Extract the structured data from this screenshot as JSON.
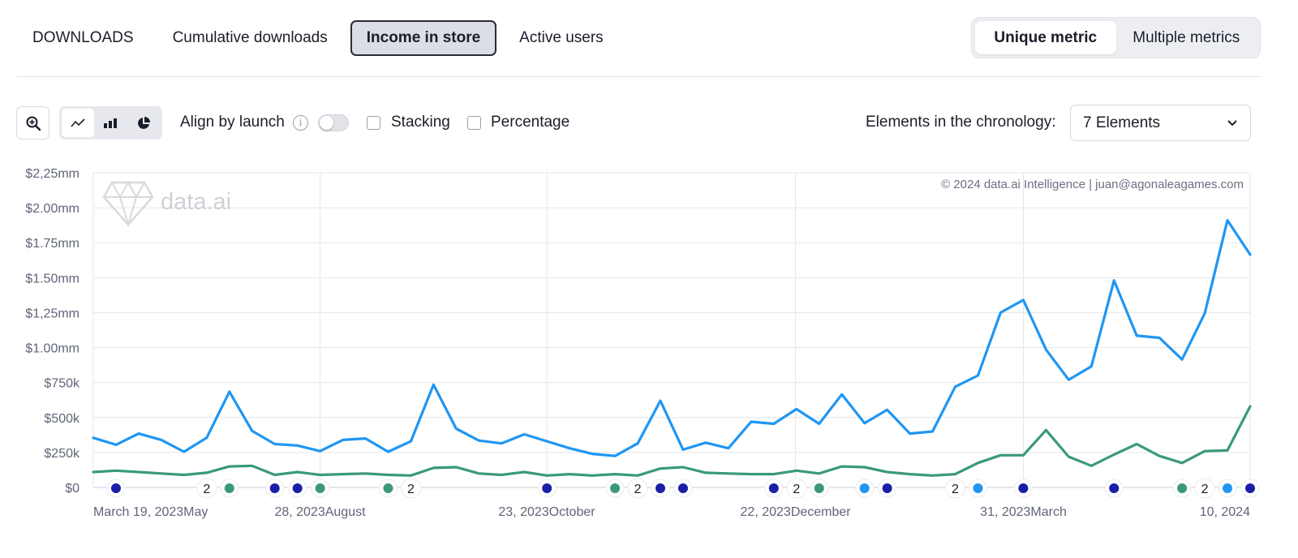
{
  "tabs": [
    {
      "label": "DOWNLOADS",
      "active": false
    },
    {
      "label": "Cumulative downloads",
      "active": false
    },
    {
      "label": "Income in store",
      "active": true
    },
    {
      "label": "Active users",
      "active": false
    }
  ],
  "metric_toggle": {
    "unique": "Unique metric",
    "multiple": "Multiple metrics",
    "selected": "unique"
  },
  "toolbar": {
    "zoom_icon": "zoom-in-icon",
    "chart_types": [
      "line-chart-icon",
      "bar-chart-icon",
      "pie-chart-icon"
    ],
    "selected_chart_type": "line",
    "align_label": "Align by launch",
    "align_on": false,
    "stacking_label": "Stacking",
    "stacking_checked": false,
    "percentage_label": "Percentage",
    "percentage_checked": false,
    "elements_label": "Elements in the chronology:",
    "elements_value": "7 Elements"
  },
  "chart_data": {
    "type": "line",
    "watermark": "data.ai",
    "credit": "© 2024 data.ai Intelligence | juan@agonaleagames.com",
    "y_ticks": [
      "$0",
      "$250k",
      "$500k",
      "$750k",
      "$1.00mm",
      "$1,25mm",
      "$1.50mm",
      "$1.75mm",
      "$2.00mm",
      "$2,25mm"
    ],
    "ylim": [
      0,
      2250000
    ],
    "x_labels": [
      "March 19, 2023May",
      "28, 2023August",
      "23, 2023October",
      "22, 2023December",
      "31, 2023March",
      "10, 2024"
    ],
    "grid": true,
    "series": [
      {
        "color": "#1f96f3",
        "values": [
          355000,
          305000,
          385000,
          340000,
          255000,
          355000,
          685000,
          405000,
          310000,
          300000,
          260000,
          340000,
          350000,
          255000,
          330000,
          735000,
          420000,
          335000,
          315000,
          380000,
          330000,
          280000,
          240000,
          225000,
          315000,
          620000,
          270000,
          320000,
          280000,
          470000,
          455000,
          560000,
          455000,
          665000,
          460000,
          555000,
          385000,
          400000,
          720000,
          800000,
          1250000,
          1340000,
          985000,
          770000,
          865000,
          1480000,
          1085000,
          1070000,
          915000,
          1245000,
          1910000,
          1665000
        ]
      },
      {
        "color": "#3a9a74",
        "values": [
          110000,
          120000,
          110000,
          100000,
          90000,
          105000,
          150000,
          155000,
          90000,
          110000,
          90000,
          95000,
          100000,
          90000,
          85000,
          140000,
          145000,
          100000,
          90000,
          110000,
          85000,
          95000,
          85000,
          95000,
          85000,
          135000,
          145000,
          105000,
          100000,
          95000,
          95000,
          120000,
          100000,
          150000,
          145000,
          110000,
          95000,
          85000,
          95000,
          175000,
          230000,
          230000,
          410000,
          220000,
          155000,
          235000,
          310000,
          225000,
          175000,
          260000,
          265000,
          580000
        ]
      }
    ],
    "events": [
      {
        "index": 1,
        "type": "dot",
        "color": "#1a1fa8"
      },
      {
        "index": 5,
        "type": "count",
        "label": "2"
      },
      {
        "index": 6,
        "type": "dot",
        "color": "#3a9a74"
      },
      {
        "index": 8,
        "type": "dot",
        "color": "#1a1fa8"
      },
      {
        "index": 9,
        "type": "dot",
        "color": "#1a1fa8"
      },
      {
        "index": 10,
        "type": "dot",
        "color": "#3a9a74"
      },
      {
        "index": 13,
        "type": "dot",
        "color": "#3a9a74"
      },
      {
        "index": 14,
        "type": "count",
        "label": "2"
      },
      {
        "index": 20,
        "type": "dot",
        "color": "#1a1fa8"
      },
      {
        "index": 23,
        "type": "dot",
        "color": "#3a9a74"
      },
      {
        "index": 24,
        "type": "count",
        "label": "2"
      },
      {
        "index": 25,
        "type": "dot",
        "color": "#1a1fa8"
      },
      {
        "index": 26,
        "type": "dot",
        "color": "#1a1fa8"
      },
      {
        "index": 30,
        "type": "dot",
        "color": "#1a1fa8"
      },
      {
        "index": 31,
        "type": "count",
        "label": "2"
      },
      {
        "index": 32,
        "type": "dot",
        "color": "#3a9a74"
      },
      {
        "index": 34,
        "type": "dot",
        "color": "#1f96f3"
      },
      {
        "index": 35,
        "type": "dot",
        "color": "#1a1fa8"
      },
      {
        "index": 38,
        "type": "count",
        "label": "2"
      },
      {
        "index": 39,
        "type": "dot",
        "color": "#1f96f3"
      },
      {
        "index": 41,
        "type": "dot",
        "color": "#1a1fa8"
      },
      {
        "index": 45,
        "type": "dot",
        "color": "#1a1fa8"
      },
      {
        "index": 48,
        "type": "dot",
        "color": "#3a9a74"
      },
      {
        "index": 49,
        "type": "count",
        "label": "2"
      },
      {
        "index": 50,
        "type": "dot",
        "color": "#1f96f3"
      },
      {
        "index": 51,
        "type": "dot",
        "color": "#1a1fa8"
      }
    ]
  }
}
